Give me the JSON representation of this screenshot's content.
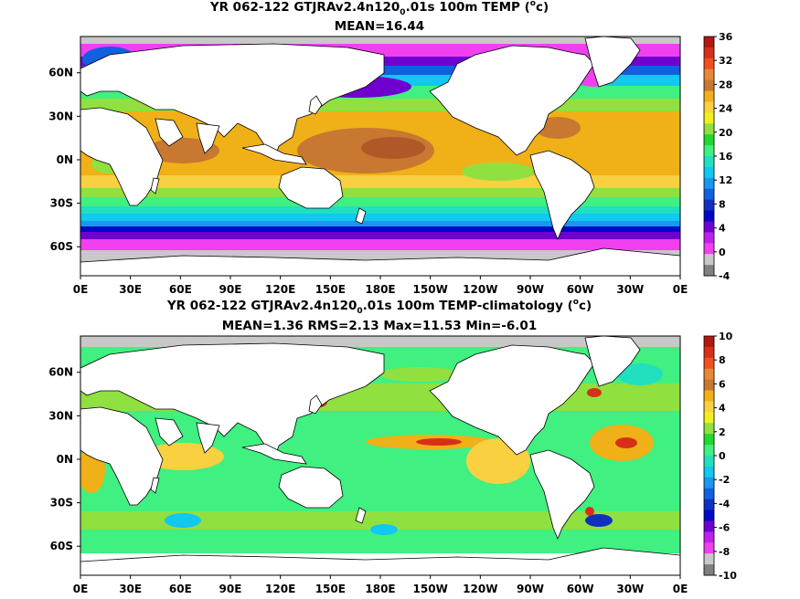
{
  "panels": [
    {
      "title_pre": "YR 062-122 GTJRAv2.4n120",
      "title_sub": "0",
      "title_post": ".01s 100m TEMP (",
      "title_sup": "o",
      "title_end": "c)",
      "stats": "MEAN=16.44",
      "lon_ticks": [
        "0E",
        "30E",
        "60E",
        "90E",
        "120E",
        "150E",
        "180E",
        "150W",
        "120W",
        "90W",
        "60W",
        "30W",
        "0E"
      ],
      "lat_ticks": [
        "60N",
        "30N",
        "0N",
        "30S",
        "60S"
      ],
      "colorbar": {
        "labels": [
          "36",
          "32",
          "28",
          "24",
          "20",
          "16",
          "12",
          "8",
          "4",
          "0",
          "-4"
        ],
        "colors": [
          "#b01810",
          "#d83018",
          "#f05020",
          "#e88838",
          "#c87830",
          "#f0b018",
          "#f8d040",
          "#f0f020",
          "#90e040",
          "#20d830",
          "#40f080",
          "#20e0c0",
          "#10c8f0",
          "#1898f0",
          "#1060e0",
          "#1030c0",
          "#0008c8",
          "#7000d0",
          "#c020f0",
          "#f040f0",
          "#c8c8c8",
          "#808080"
        ]
      },
      "land_color": "#ffffff",
      "ice_color": "#c8c8c8"
    },
    {
      "title_pre": "YR 062-122 GTJRAv2.4n120",
      "title_sub": "0",
      "title_post": ".01s 100m TEMP-climatology (",
      "title_sup": "o",
      "title_end": "c)",
      "stats": "MEAN=1.36   RMS=2.13   Max=11.53   Min=-6.01",
      "lon_ticks": [
        "0E",
        "30E",
        "60E",
        "90E",
        "120E",
        "150E",
        "180E",
        "150W",
        "120W",
        "90W",
        "60W",
        "30W",
        "0E"
      ],
      "lat_ticks": [
        "60N",
        "30N",
        "0N",
        "30S",
        "60S"
      ],
      "colorbar": {
        "labels": [
          "10",
          "8",
          "6",
          "4",
          "2",
          "0",
          "-2",
          "-4",
          "-6",
          "-8",
          "-10"
        ],
        "colors": [
          "#b01810",
          "#d83018",
          "#f05020",
          "#e88838",
          "#c87830",
          "#f0b018",
          "#f8d040",
          "#f0f020",
          "#90e040",
          "#20d830",
          "#40f080",
          "#20e0c0",
          "#10c8f0",
          "#1898f0",
          "#1060e0",
          "#1030c0",
          "#0008c8",
          "#7000d0",
          "#c020f0",
          "#f040f0",
          "#c8c8c8",
          "#808080"
        ]
      },
      "land_color": "#ffffff",
      "ocean_base": "#40f080"
    }
  ]
}
